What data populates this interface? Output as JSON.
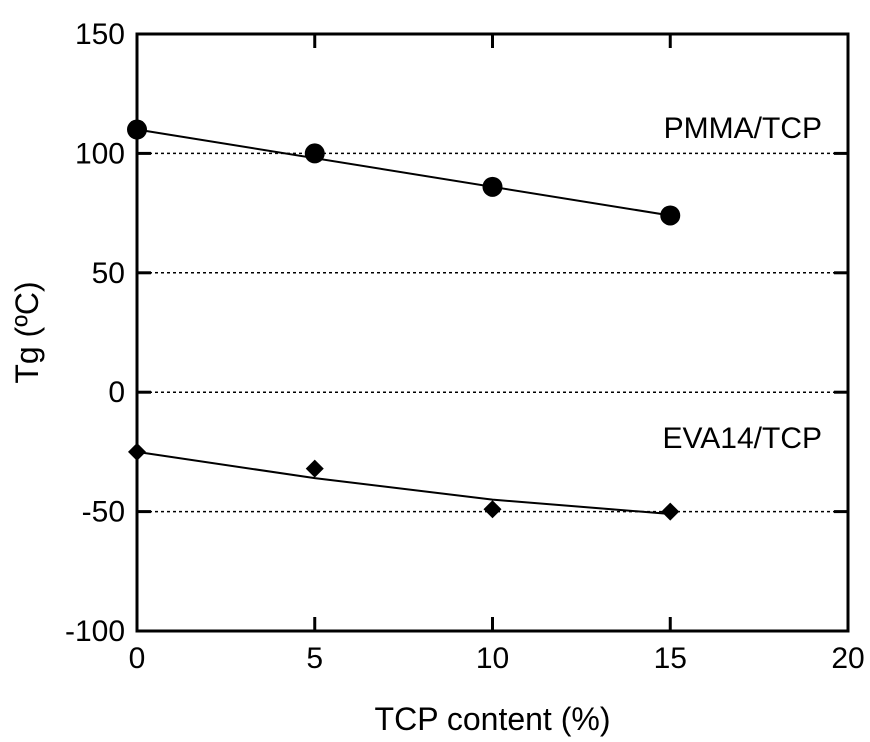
{
  "chart_data": {
    "type": "scatter",
    "title": "",
    "xlabel": "TCP content (%)",
    "ylabel": "Tg (ºC)",
    "xlim": [
      0,
      20
    ],
    "ylim": [
      -100,
      150
    ],
    "xticks": [
      0,
      5,
      10,
      15,
      20
    ],
    "yticks": [
      -100,
      -50,
      0,
      50,
      100,
      150
    ],
    "xtick_labels": [
      "0",
      "5",
      "10",
      "15",
      "20"
    ],
    "ytick_labels": [
      "-100",
      "-50",
      "0",
      "50",
      "100",
      "150"
    ],
    "grid": "dotted horizontal lines at y = -50, 0, 50, 100",
    "legend": "none (series labeled inline)",
    "series": [
      {
        "name": "PMMA/TCP",
        "marker": "circle",
        "color": "#000000",
        "x": [
          0,
          5,
          10,
          15
        ],
        "y": [
          110,
          100,
          86,
          74
        ],
        "fit_line": [
          [
            0,
            110
          ],
          [
            15,
            74
          ]
        ]
      },
      {
        "name": "EVA14/TCP",
        "marker": "diamond",
        "color": "#000000",
        "x": [
          0,
          5,
          10,
          15
        ],
        "y": [
          -25,
          -32,
          -49,
          -50
        ],
        "fit_line": [
          [
            0,
            -25
          ],
          [
            5,
            -36
          ],
          [
            10,
            -45
          ],
          [
            15,
            -51
          ]
        ]
      }
    ]
  }
}
